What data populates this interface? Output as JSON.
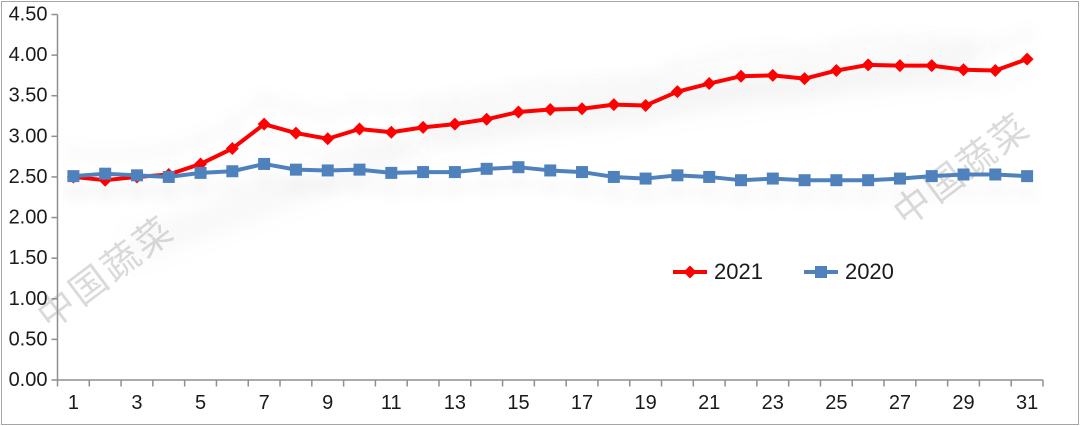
{
  "watermark": {
    "text": "中国蔬菜"
  },
  "legend": {
    "items": [
      {
        "label": "2021",
        "color": "#ff0000",
        "marker": "diamond"
      },
      {
        "label": "2020",
        "color": "#4f81bd",
        "marker": "square"
      }
    ]
  },
  "chart_data": {
    "type": "line",
    "title": "",
    "xlabel": "",
    "ylabel": "",
    "x": [
      1,
      2,
      3,
      4,
      5,
      6,
      7,
      8,
      9,
      10,
      11,
      12,
      13,
      14,
      15,
      16,
      17,
      18,
      19,
      20,
      21,
      22,
      23,
      24,
      25,
      26,
      27,
      28,
      29,
      30,
      31
    ],
    "x_label_step": 2,
    "ylim": [
      0,
      4.5
    ],
    "y_tick_step": 0.5,
    "y_tick_labels": [
      "0.00",
      "0.50",
      "1.00",
      "1.50",
      "2.00",
      "2.50",
      "3.00",
      "3.50",
      "4.00",
      "4.50"
    ],
    "grid": false,
    "legend_position": "inside-bottom-center-right",
    "series": [
      {
        "name": "2021",
        "color": "#ff0000",
        "marker": "diamond",
        "values": [
          2.5,
          2.46,
          2.5,
          2.53,
          2.66,
          2.85,
          3.15,
          3.04,
          2.97,
          3.09,
          3.05,
          3.11,
          3.15,
          3.21,
          3.3,
          3.33,
          3.34,
          3.39,
          3.38,
          3.55,
          3.65,
          3.74,
          3.75,
          3.71,
          3.81,
          3.88,
          3.87,
          3.87,
          3.82,
          3.81,
          3.95
        ]
      },
      {
        "name": "2020",
        "color": "#4f81bd",
        "marker": "square",
        "values": [
          2.51,
          2.54,
          2.52,
          2.5,
          2.55,
          2.57,
          2.66,
          2.59,
          2.58,
          2.59,
          2.55,
          2.56,
          2.56,
          2.6,
          2.62,
          2.58,
          2.56,
          2.5,
          2.48,
          2.52,
          2.5,
          2.46,
          2.48,
          2.46,
          2.46,
          2.46,
          2.48,
          2.51,
          2.53,
          2.53,
          2.51
        ]
      }
    ]
  }
}
